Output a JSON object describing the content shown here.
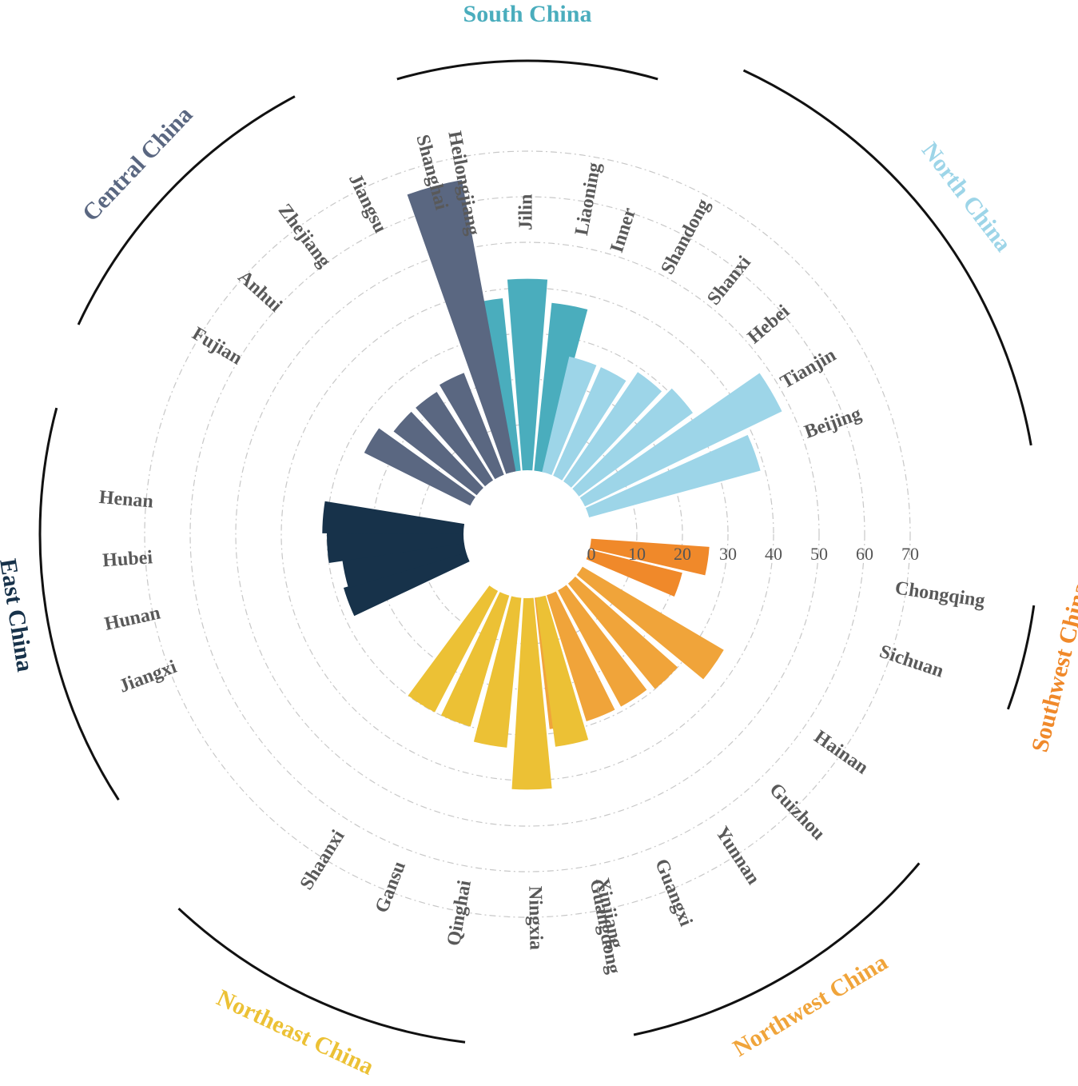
{
  "chart_data": {
    "type": "bar",
    "polar": true,
    "radial_ticks": [
      0,
      10,
      20,
      30,
      40,
      50,
      60,
      70
    ],
    "rlim": [
      0,
      70
    ],
    "grid": true,
    "regions": [
      {
        "name": "South China",
        "color": "#4aadbd",
        "provinces": [
          {
            "name": "Heilongjiang",
            "value": 38
          },
          {
            "name": "Jilin",
            "value": 42
          },
          {
            "name": "Liaoning",
            "value": 37
          }
        ]
      },
      {
        "name": "North China",
        "color": "#9dd5e8",
        "provinces": [
          {
            "name": "Inner",
            "value": 26
          },
          {
            "name": "Shandong",
            "value": 26
          },
          {
            "name": "Shanxi",
            "value": 29
          },
          {
            "name": "Hebei",
            "value": 31
          },
          {
            "name": "Tianjin",
            "value": 48
          },
          {
            "name": "Beijing",
            "value": 39
          }
        ]
      },
      {
        "name": "Southwest China",
        "color": "#f0892a",
        "provinces": [
          {
            "name": "Chongqing",
            "value": 26
          },
          {
            "name": "Sichuan",
            "value": 21
          }
        ]
      },
      {
        "name": "Northwest China",
        "color": "#f0a43a",
        "provinces": [
          {
            "name": "Hainan",
            "value": 36
          },
          {
            "name": "Guizhou",
            "value": 30
          },
          {
            "name": "Yunnan",
            "value": 29
          },
          {
            "name": "Guangxi",
            "value": 29
          },
          {
            "name": "Guangdong",
            "value": 29
          }
        ]
      },
      {
        "name": "Northeast China",
        "color": "#ecc135",
        "provinces": [
          {
            "name": "Xinjiang",
            "value": 33
          },
          {
            "name": "Ningxia",
            "value": 42
          },
          {
            "name": "Qinghai",
            "value": 33
          },
          {
            "name": "Gansu",
            "value": 30
          },
          {
            "name": "Shaanxi",
            "value": 30
          }
        ]
      },
      {
        "name": "East China",
        "color": "#17324a",
        "provinces": [
          {
            "name": "Jiangxi",
            "value": 28
          },
          {
            "name": "Hunan",
            "value": 27
          },
          {
            "name": "Hubei",
            "value": 30
          },
          {
            "name": "Henan",
            "value": 31
          }
        ]
      },
      {
        "name": "Central China",
        "color": "#5a6781",
        "provinces": [
          {
            "name": "Fujian",
            "value": 26
          },
          {
            "name": "Anhui",
            "value": 23
          },
          {
            "name": "Zhejiang",
            "value": 23
          },
          {
            "name": "Jiangsu",
            "value": 24
          },
          {
            "name": "Shanghai",
            "value": 65
          }
        ]
      }
    ]
  }
}
